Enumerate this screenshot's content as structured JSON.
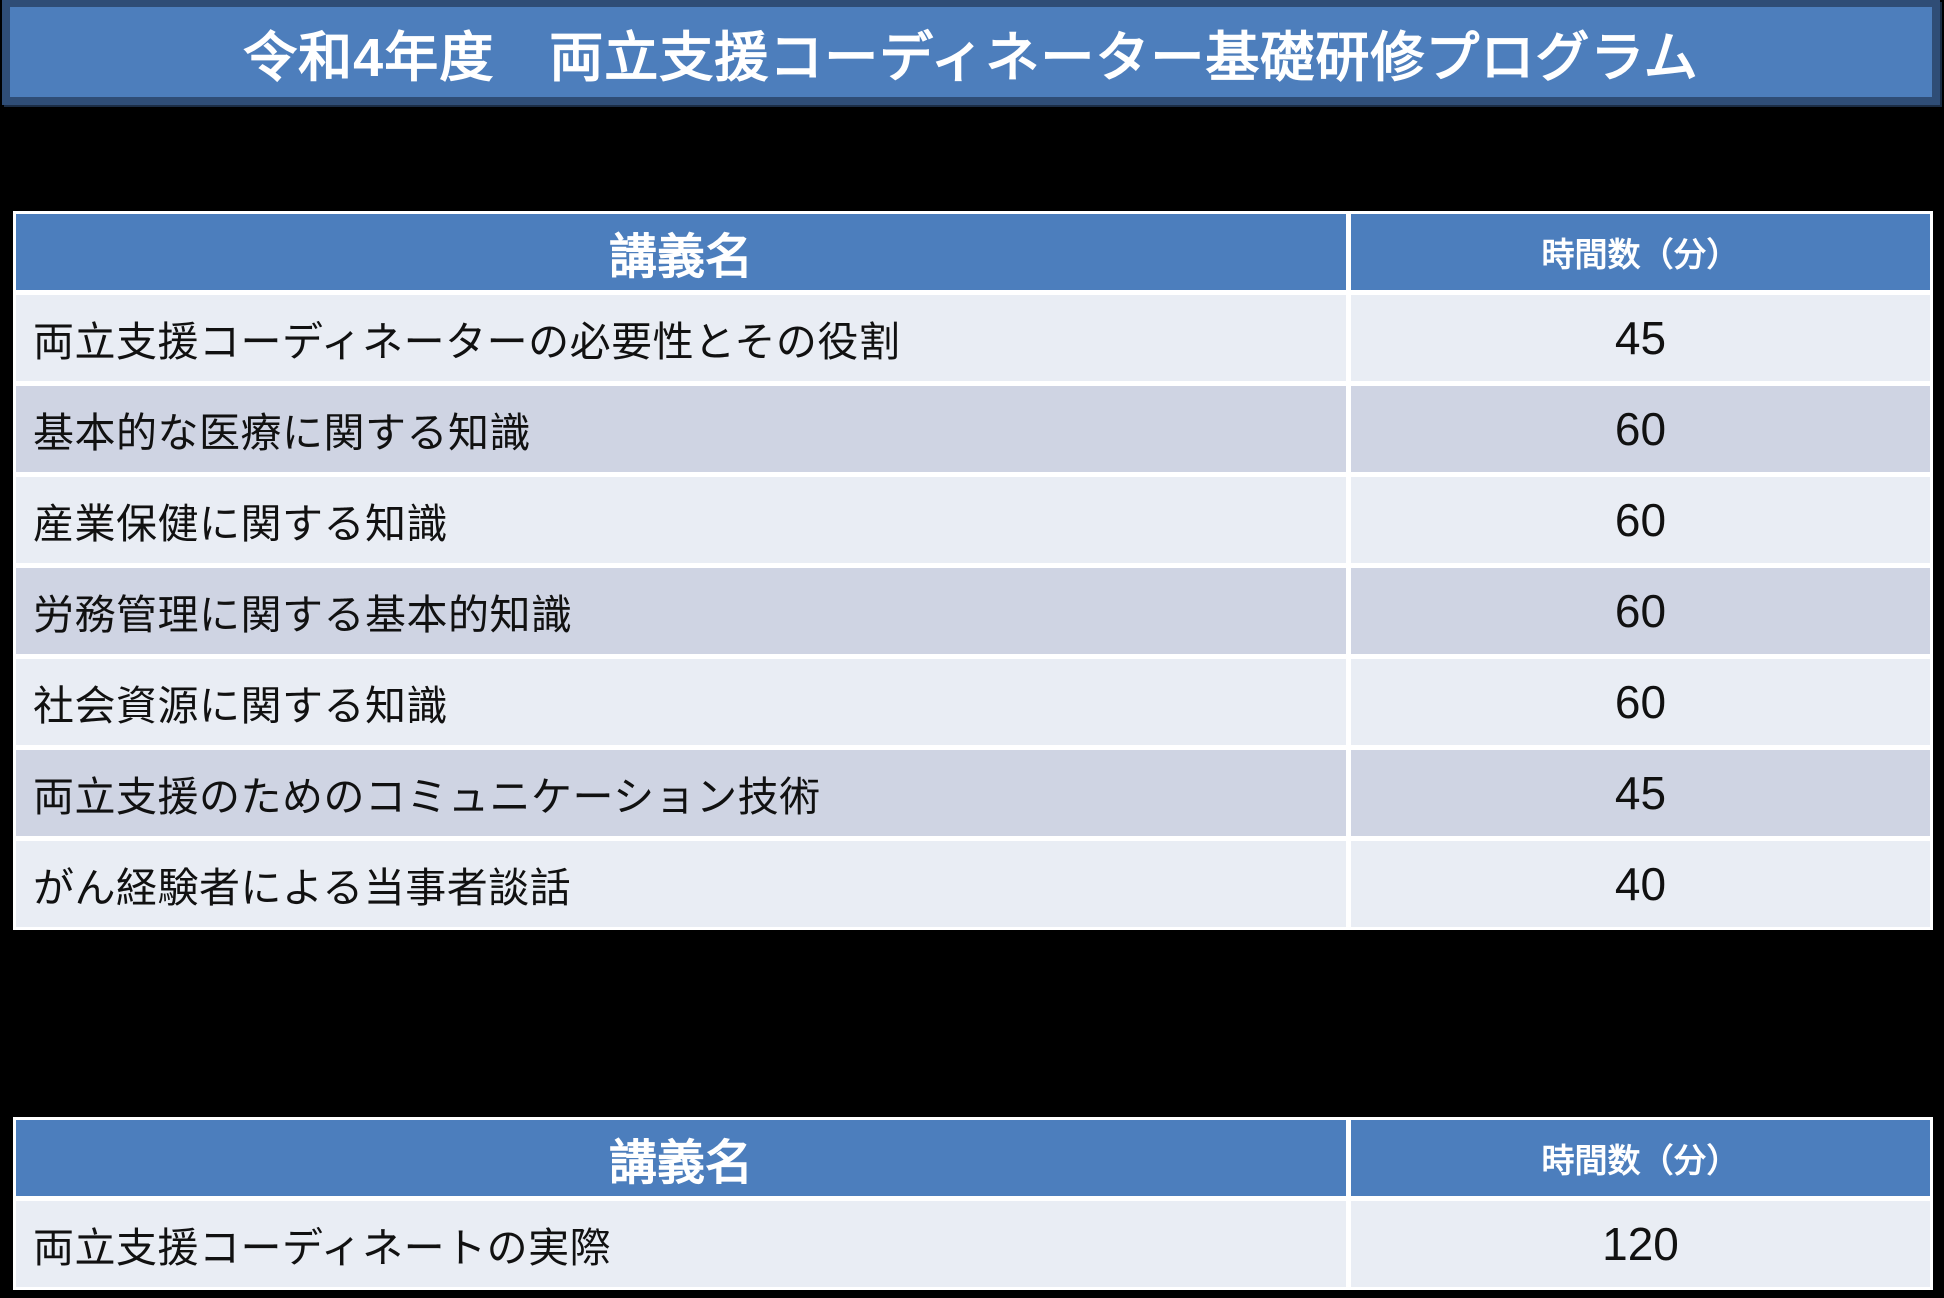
{
  "title": "令和4年度　両立支援コーディネーター基礎研修プログラム",
  "colors": {
    "page_bg": "#000000",
    "banner_fill": "#4d7ebc",
    "banner_border": "#2f4d76",
    "header_blue": "#4c7ebd",
    "band_dark": "#cfd4e3",
    "band_light": "#e9edf4",
    "separator": "#ffffff",
    "header_text": "#ffffff",
    "body_text": "#111111"
  },
  "table1": {
    "headers": {
      "lecture": "講義名",
      "minutes": "時間数（分）"
    },
    "rows": [
      {
        "lecture": "両立支援コーディネーターの必要性とその役割",
        "minutes": "45"
      },
      {
        "lecture": "基本的な医療に関する知識",
        "minutes": "60"
      },
      {
        "lecture": "産業保健に関する知識",
        "minutes": "60"
      },
      {
        "lecture": "労務管理に関する基本的知識",
        "minutes": "60"
      },
      {
        "lecture": "社会資源に関する知識",
        "minutes": "60"
      },
      {
        "lecture": "両立支援のためのコミュニケーション技術",
        "minutes": "45"
      },
      {
        "lecture": "がん経験者による当事者談話",
        "minutes": "40"
      }
    ]
  },
  "table2": {
    "headers": {
      "lecture": "講義名",
      "minutes": "時間数（分）"
    },
    "rows": [
      {
        "lecture": "両立支援コーディネートの実際",
        "minutes": "120"
      }
    ]
  }
}
